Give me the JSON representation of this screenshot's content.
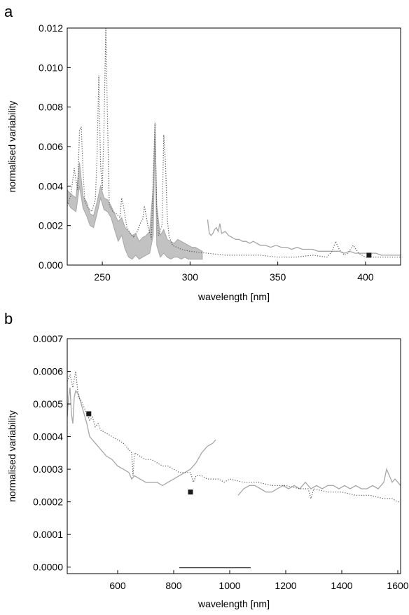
{
  "colors": {
    "solid": "#a6a6a6",
    "band": "#c2c2c2",
    "dotted": "#555555",
    "marker": "#1a1a1a"
  },
  "chart_data": [
    {
      "panel": "a",
      "type": "line",
      "xlabel": "wavelength [nm]",
      "ylabel": "normalised variability",
      "xlim": [
        230,
        420
      ],
      "ylim": [
        0,
        0.012
      ],
      "xticks": [
        250,
        300,
        350,
        400
      ],
      "yticks": [
        0.0,
        0.002,
        0.004,
        0.006,
        0.008,
        0.01,
        0.012
      ],
      "ytick_labels": [
        "0.000",
        "0.002",
        "0.004",
        "0.006",
        "0.008",
        "0.010",
        "0.012"
      ],
      "band": {
        "x": [
          230,
          232,
          235,
          237,
          239,
          241,
          243,
          245,
          247,
          249,
          251,
          253,
          255,
          257,
          259,
          261,
          263,
          265,
          267,
          269,
          271,
          273,
          275,
          277,
          279,
          280,
          281,
          283,
          285,
          287,
          289,
          291,
          293,
          295,
          297,
          299,
          301,
          303,
          305,
          307
        ],
        "upper": [
          0.0038,
          0.0036,
          0.0034,
          0.0052,
          0.0035,
          0.0032,
          0.0026,
          0.0025,
          0.0032,
          0.004,
          0.0034,
          0.0033,
          0.003,
          0.0026,
          0.0022,
          0.0024,
          0.0019,
          0.0017,
          0.0015,
          0.0016,
          0.0012,
          0.0014,
          0.0015,
          0.0017,
          0.004,
          0.0072,
          0.003,
          0.0015,
          0.0018,
          0.0013,
          0.0012,
          0.0011,
          0.0013,
          0.0012,
          0.0011,
          0.001,
          0.0009,
          0.0009,
          0.0008,
          0.0007
        ],
        "lower": [
          0.0032,
          0.0029,
          0.0027,
          0.004,
          0.0029,
          0.0025,
          0.002,
          0.0019,
          0.0026,
          0.0034,
          0.0028,
          0.0027,
          0.0024,
          0.0018,
          0.0012,
          0.0015,
          0.0008,
          0.0004,
          0.0003,
          0.0005,
          0.0003,
          0.0004,
          0.0005,
          0.0006,
          0.0015,
          0.0068,
          0.001,
          0.0004,
          0.0006,
          0.0004,
          0.0003,
          0.0004,
          0.0004,
          0.0003,
          0.0004,
          0.0003,
          0.0003,
          0.0003,
          0.0003,
          0.0003
        ]
      },
      "series": [
        {
          "style": "solid",
          "x": [
            310,
            311,
            312,
            313,
            314,
            315,
            316,
            317,
            318,
            320,
            322,
            324,
            326,
            328,
            330,
            332,
            334,
            336,
            338,
            340,
            343,
            346,
            349,
            352,
            355,
            358,
            361,
            364,
            367,
            370,
            373,
            376,
            379,
            382,
            385,
            388,
            391,
            394,
            397,
            400,
            403,
            406,
            409,
            412,
            415,
            418,
            420
          ],
          "y": [
            0.0023,
            0.0016,
            0.0015,
            0.0016,
            0.0018,
            0.0019,
            0.0017,
            0.0021,
            0.0016,
            0.0017,
            0.0015,
            0.0014,
            0.0013,
            0.0013,
            0.0012,
            0.0012,
            0.0011,
            0.0012,
            0.0011,
            0.001,
            0.001,
            0.0009,
            0.001,
            0.0009,
            0.0009,
            0.0008,
            0.0009,
            0.0008,
            0.0008,
            0.0008,
            0.0007,
            0.0007,
            0.0007,
            0.0007,
            0.0007,
            0.0006,
            0.0007,
            0.0006,
            0.0006,
            0.0006,
            0.0006,
            0.0006,
            0.0005,
            0.0005,
            0.0005,
            0.0005,
            0.0005
          ]
        },
        {
          "style": "dotted",
          "x": [
            230,
            232,
            234,
            235,
            236,
            237,
            238,
            239,
            240,
            242,
            244,
            246,
            247,
            248,
            249,
            250,
            251,
            252,
            253,
            254,
            256,
            258,
            260,
            261,
            262,
            264,
            266,
            268,
            270,
            272,
            273,
            274,
            276,
            278,
            279,
            280,
            281,
            282,
            284,
            285,
            286,
            287,
            288,
            290,
            295,
            300,
            310,
            320,
            330,
            340,
            350,
            360,
            370,
            378,
            381,
            383,
            385,
            388,
            390,
            393,
            396,
            400,
            405,
            410,
            415,
            420
          ],
          "y": [
            0.003,
            0.0035,
            0.0049,
            0.0043,
            0.0038,
            0.0068,
            0.007,
            0.0048,
            0.0032,
            0.0029,
            0.0027,
            0.0033,
            0.0055,
            0.0096,
            0.0051,
            0.0038,
            0.0072,
            0.012,
            0.0072,
            0.003,
            0.0027,
            0.0026,
            0.0024,
            0.0034,
            0.003,
            0.0019,
            0.0016,
            0.0014,
            0.0017,
            0.0022,
            0.0023,
            0.003,
            0.002,
            0.0013,
            0.0045,
            0.0072,
            0.0028,
            0.0015,
            0.002,
            0.0066,
            0.0052,
            0.0024,
            0.0015,
            0.001,
            0.0008,
            0.0007,
            0.0006,
            0.0005,
            0.0005,
            0.0005,
            0.0004,
            0.0004,
            0.0005,
            0.0004,
            0.0007,
            0.0012,
            0.0008,
            0.0005,
            0.0006,
            0.001,
            0.0006,
            0.0004,
            0.0004,
            0.0004,
            0.0004,
            0.0004
          ]
        }
      ],
      "markers": [
        {
          "x": 402,
          "y": 0.0005
        }
      ]
    },
    {
      "panel": "b",
      "type": "line",
      "xlabel": "wavelength [nm]",
      "ylabel": "normalised variability",
      "xlim": [
        420,
        1610
      ],
      "ylim": [
        -2e-05,
        0.0007
      ],
      "xticks": [
        600,
        800,
        1000,
        1200,
        1400,
        1600
      ],
      "yticks": [
        0.0,
        0.0001,
        0.0002,
        0.0003,
        0.0004,
        0.0005,
        0.0006,
        0.0007
      ],
      "ytick_labels": [
        "0.0000",
        "0.0001",
        "0.0002",
        "0.0003",
        "0.0004",
        "0.0005",
        "0.0006",
        "0.0007"
      ],
      "series": [
        {
          "style": "solid",
          "x": [
            420,
            425,
            430,
            435,
            440,
            445,
            450,
            460,
            470,
            480,
            490,
            500,
            520,
            540,
            560,
            580,
            600,
            620,
            640,
            650,
            660,
            680,
            700,
            720,
            740,
            760,
            780,
            800,
            820,
            840,
            860,
            880,
            900,
            920,
            940,
            950
          ],
          "y": [
            0.00046,
            0.00052,
            0.00055,
            0.00047,
            0.00044,
            0.00052,
            0.00054,
            0.00053,
            0.0005,
            0.00047,
            0.00044,
            0.0004,
            0.00038,
            0.00036,
            0.00034,
            0.00033,
            0.00031,
            0.0003,
            0.00029,
            0.00027,
            0.00028,
            0.00027,
            0.00026,
            0.00026,
            0.00026,
            0.00025,
            0.00026,
            0.00027,
            0.00028,
            0.00029,
            0.0003,
            0.00032,
            0.00035,
            0.00037,
            0.00038,
            0.00039
          ]
        },
        {
          "style": "solid",
          "x": [
            1030,
            1050,
            1070,
            1090,
            1110,
            1130,
            1150,
            1170,
            1190,
            1210,
            1230,
            1250,
            1270,
            1290,
            1310,
            1330,
            1350,
            1370,
            1390,
            1410,
            1430,
            1450,
            1470,
            1490,
            1510,
            1530,
            1550,
            1560,
            1570,
            1580,
            1590,
            1600,
            1610
          ],
          "y": [
            0.00022,
            0.00024,
            0.00025,
            0.00025,
            0.00024,
            0.00023,
            0.00023,
            0.00024,
            0.00025,
            0.00024,
            0.00025,
            0.00024,
            0.00026,
            0.00024,
            0.00025,
            0.00024,
            0.00025,
            0.00025,
            0.00024,
            0.00025,
            0.00024,
            0.00025,
            0.00024,
            0.00024,
            0.00025,
            0.00024,
            0.00026,
            0.0003,
            0.00028,
            0.00026,
            0.00027,
            0.00026,
            0.00025
          ]
        },
        {
          "style": "dotted",
          "x": [
            420,
            430,
            440,
            450,
            460,
            470,
            480,
            490,
            500,
            510,
            520,
            530,
            540,
            560,
            580,
            600,
            620,
            640,
            650,
            655,
            660,
            680,
            700,
            720,
            740,
            760,
            780,
            800,
            820,
            840,
            860,
            870,
            880,
            900,
            920,
            940,
            960,
            980,
            1000,
            1050,
            1100,
            1150,
            1200,
            1250,
            1280,
            1290,
            1300,
            1350,
            1400,
            1450,
            1500,
            1550,
            1580,
            1600,
            1610
          ],
          "y": [
            0.00057,
            0.00059,
            0.00055,
            0.0006,
            0.00052,
            0.00051,
            0.00049,
            0.00047,
            0.00045,
            0.00046,
            0.00043,
            0.00044,
            0.00042,
            0.00041,
            0.0004,
            0.00039,
            0.00038,
            0.00036,
            0.00035,
            0.00028,
            0.00035,
            0.00034,
            0.00033,
            0.00033,
            0.00032,
            0.00031,
            0.00031,
            0.0003,
            0.00029,
            0.00029,
            0.00029,
            0.00026,
            0.00028,
            0.00028,
            0.00027,
            0.00027,
            0.00027,
            0.00026,
            0.00027,
            0.00026,
            0.00026,
            0.00025,
            0.00025,
            0.00024,
            0.00024,
            0.00021,
            0.00024,
            0.00023,
            0.00023,
            0.00022,
            0.00022,
            0.00021,
            0.00021,
            0.0002,
            0.0002
          ]
        }
      ],
      "markers": [
        {
          "x": 497,
          "y": 0.00047
        },
        {
          "x": 860,
          "y": 0.00023
        }
      ],
      "hline": {
        "x": [
          820,
          1075
        ],
        "y": -2e-06
      }
    }
  ]
}
